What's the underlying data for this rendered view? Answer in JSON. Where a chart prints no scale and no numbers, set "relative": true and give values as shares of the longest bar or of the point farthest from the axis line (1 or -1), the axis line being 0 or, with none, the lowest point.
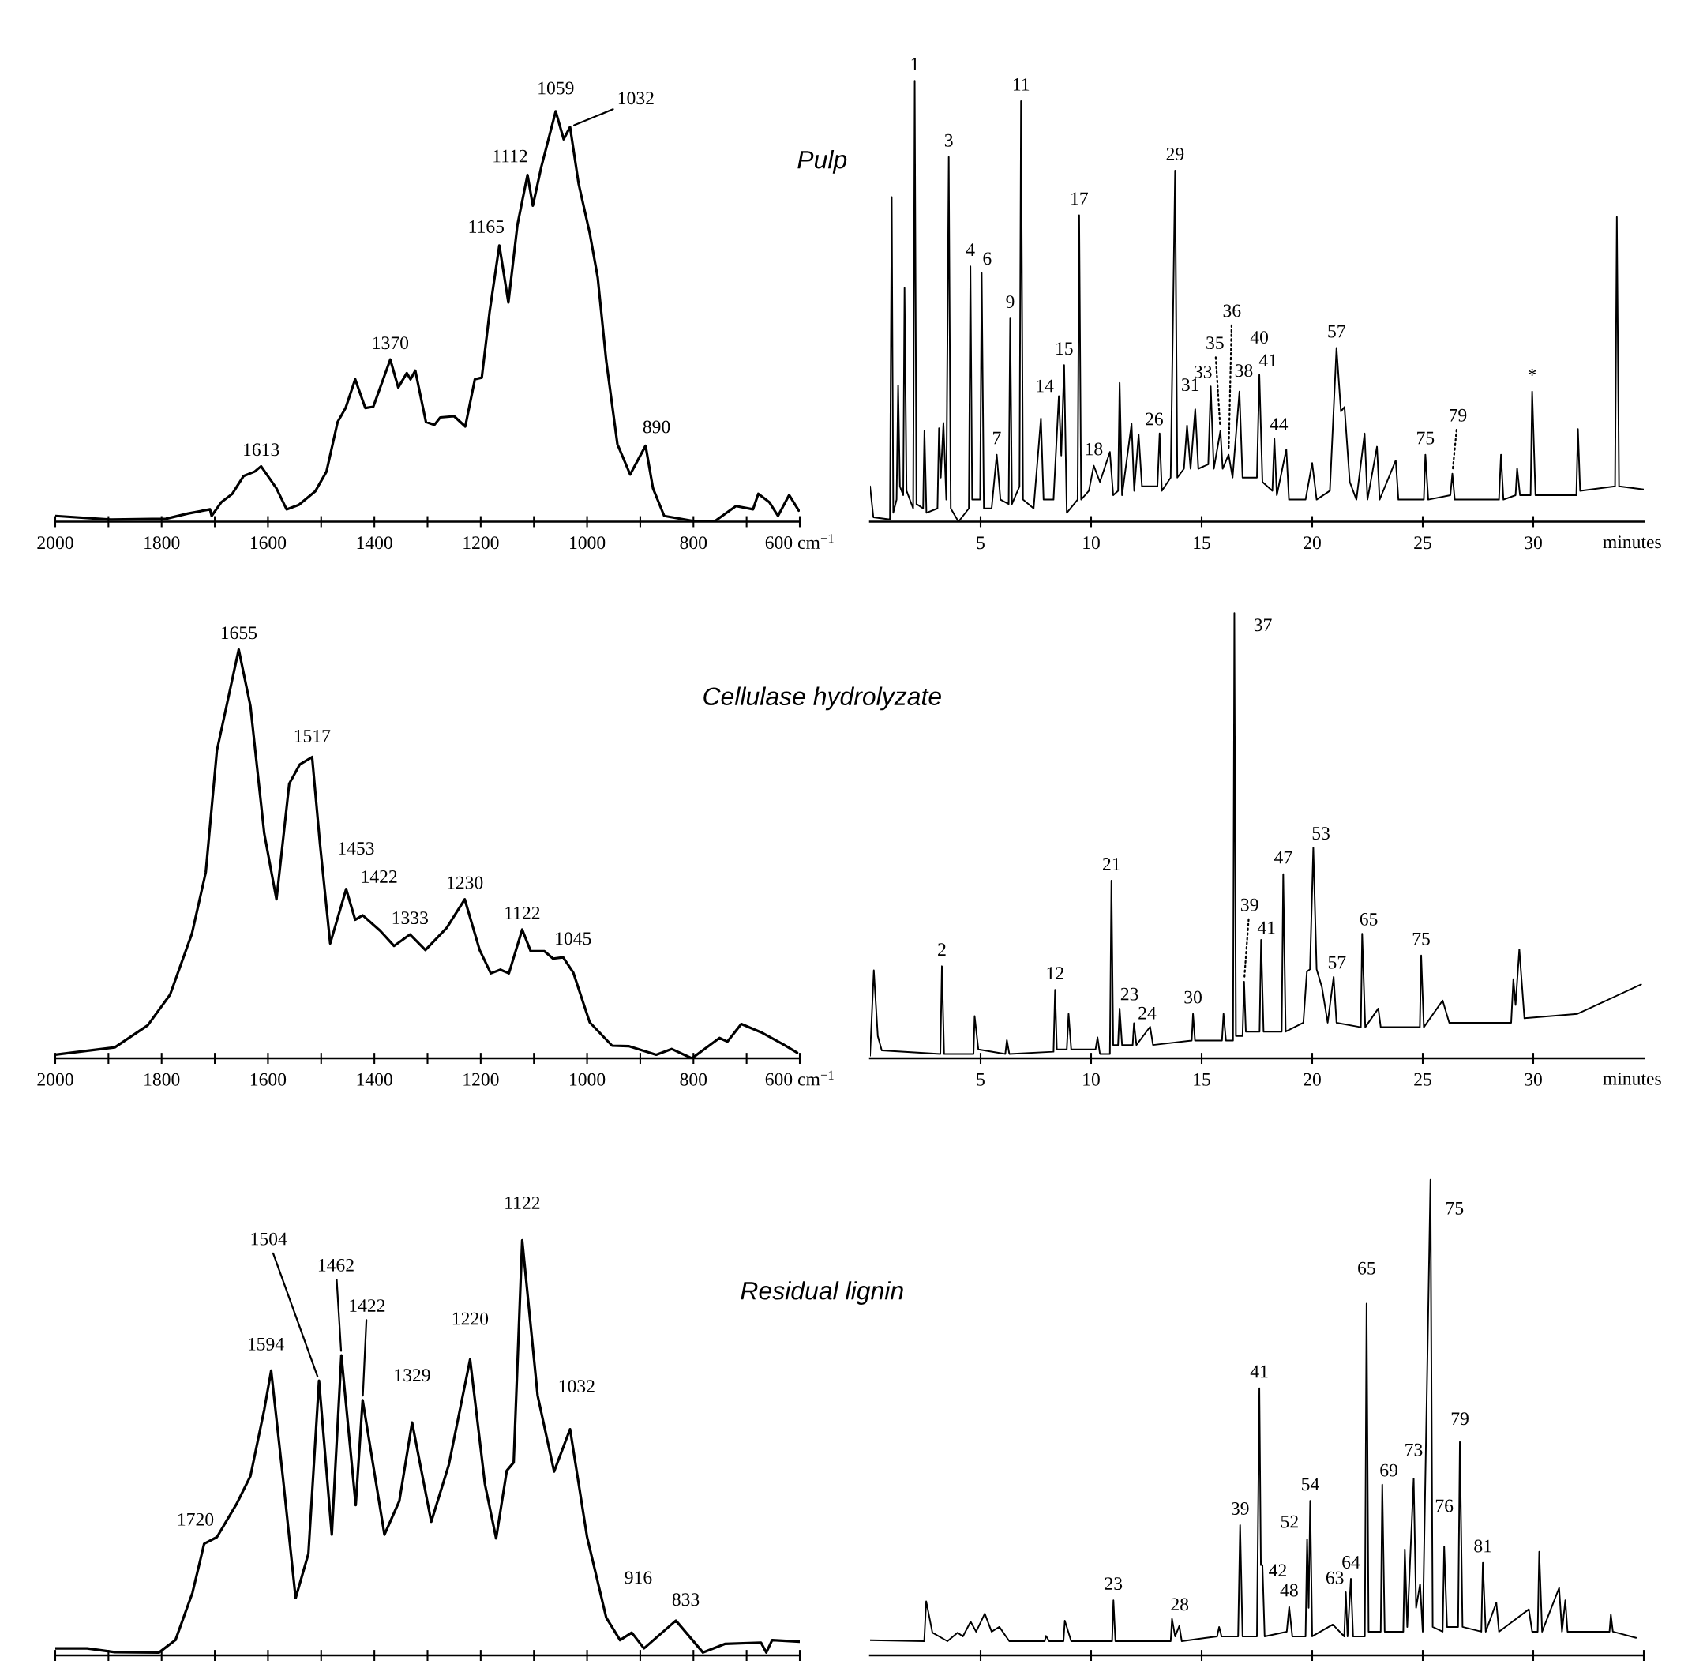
{
  "chart_data": [
    {
      "type": "line",
      "title": "Pulp",
      "relative": true,
      "xlim": [
        2000,
        600
      ],
      "xticks": [
        2000,
        {
          "value": 1900,
          "label": null
        },
        1800,
        {
          "value": 1700,
          "label": null
        },
        1600,
        {
          "value": 1500,
          "label": null
        },
        1400,
        {
          "value": 1300,
          "label": null
        },
        1200,
        {
          "value": 1100,
          "label": null
        },
        1000,
        {
          "value": 900,
          "label": null
        },
        800,
        {
          "value": 700,
          "label": null
        },
        {
          "value": 600,
          "label": "600 cm$^{−1}$"
        }
      ],
      "x": [
        2000,
        1896,
        1792,
        1750,
        1709,
        1706,
        1688,
        1667,
        1646,
        1625,
        1613,
        1584,
        1565,
        1542,
        1511,
        1490,
        1469,
        1454,
        1436,
        1417,
        1402,
        1370,
        1355,
        1339,
        1332,
        1323,
        1303,
        1287,
        1276,
        1250,
        1229,
        1211,
        1198,
        1183,
        1165,
        1148,
        1131,
        1112,
        1102,
        1086,
        1059,
        1044,
        1032,
        1016,
        995,
        980,
        964,
        943,
        919,
        890,
        876,
        855,
        793,
        761,
        720,
        688,
        678,
        657,
        641,
        620,
        602
      ],
      "values": [
        0.014,
        0.005,
        0.007,
        0.02,
        0.03,
        0.014,
        0.047,
        0.068,
        0.111,
        0.122,
        0.135,
        0.081,
        0.03,
        0.041,
        0.074,
        0.122,
        0.243,
        0.277,
        0.347,
        0.277,
        0.28,
        0.395,
        0.327,
        0.362,
        0.347,
        0.368,
        0.243,
        0.236,
        0.254,
        0.257,
        0.232,
        0.347,
        0.351,
        0.514,
        0.673,
        0.534,
        0.723,
        0.845,
        0.77,
        0.865,
        1.0,
        0.932,
        0.962,
        0.824,
        0.703,
        0.595,
        0.392,
        0.189,
        0.115,
        0.185,
        0.081,
        0.014,
        0.0,
        0.0,
        0.038,
        0.03,
        0.068,
        0.047,
        0.014,
        0.065,
        0.027
      ],
      "annotations": [
        {
          "text": "1613",
          "x": 1613,
          "y": 0.135
        },
        {
          "text": "1370",
          "x": 1370,
          "y": 0.395
        },
        {
          "text": "1165",
          "x": 1165,
          "y": 0.673
        },
        {
          "text": "1112",
          "x": 1112,
          "y": 0.845
        },
        {
          "text": "1059",
          "x": 1059,
          "y": 1.0
        },
        {
          "text": "1032",
          "x": 1032,
          "y": 0.962
        },
        {
          "text": "890",
          "x": 890,
          "y": 0.185
        }
      ]
    },
    {
      "type": "line",
      "xlabel": "minutes",
      "relative": true,
      "xlim": [
        0,
        35
      ],
      "xticks": [
        5,
        10,
        15,
        20,
        25,
        30
      ],
      "x": [
        0,
        0.15,
        0.9,
        0.98,
        1.05,
        1.2,
        1.27,
        1.35,
        1.5,
        1.56,
        1.65,
        1.95,
        2.02,
        2.1,
        2.4,
        2.46,
        2.55,
        3.05,
        3.12,
        3.2,
        3.32,
        3.45,
        3.56,
        3.65,
        4.0,
        4.47,
        4.54,
        4.62,
        4.98,
        5.05,
        5.15,
        5.5,
        5.73,
        5.9,
        6.27,
        6.34,
        6.42,
        6.76,
        6.83,
        6.92,
        7.4,
        7.73,
        7.85,
        8.3,
        8.54,
        8.65,
        8.78,
        8.9,
        9.39,
        9.46,
        9.55,
        9.9,
        10.12,
        10.4,
        10.85,
        11.0,
        11.22,
        11.29,
        11.4,
        11.83,
        11.95,
        12.15,
        12.3,
        13.0,
        13.1,
        13.2,
        13.6,
        13.8,
        13.9,
        14.2,
        14.34,
        14.5,
        14.71,
        14.85,
        15.3,
        15.41,
        15.55,
        15.85,
        15.95,
        16.22,
        16.4,
        16.71,
        16.85,
        17.5,
        17.61,
        17.75,
        18.2,
        18.29,
        18.4,
        18.83,
        18.95,
        19.7,
        20.0,
        20.2,
        20.8,
        21.1,
        21.3,
        21.46,
        21.7,
        22.0,
        22.37,
        22.5,
        22.93,
        23.05,
        23.78,
        23.9,
        25.05,
        25.12,
        25.25,
        26.25,
        26.34,
        26.45,
        28.45,
        28.54,
        28.65,
        29.2,
        29.27,
        29.4,
        29.88,
        29.95,
        30.1,
        31.95,
        32.02,
        32.12,
        33.7,
        33.78,
        33.88,
        35.0
      ],
      "values": [
        0.08,
        0.01,
        0.005,
        0.736,
        0.02,
        0.05,
        0.309,
        0.08,
        0.06,
        0.53,
        0.07,
        0.03,
        1.0,
        0.04,
        0.03,
        0.206,
        0.02,
        0.03,
        0.212,
        0.1,
        0.224,
        0.05,
        0.827,
        0.03,
        0.0,
        0.03,
        0.579,
        0.05,
        0.05,
        0.564,
        0.03,
        0.03,
        0.152,
        0.05,
        0.04,
        0.461,
        0.04,
        0.08,
        0.954,
        0.05,
        0.03,
        0.234,
        0.05,
        0.05,
        0.285,
        0.15,
        0.355,
        0.02,
        0.05,
        0.695,
        0.05,
        0.07,
        0.127,
        0.09,
        0.158,
        0.06,
        0.07,
        0.315,
        0.06,
        0.222,
        0.07,
        0.198,
        0.08,
        0.08,
        0.2,
        0.07,
        0.1,
        0.796,
        0.1,
        0.12,
        0.218,
        0.12,
        0.255,
        0.12,
        0.13,
        0.307,
        0.12,
        0.206,
        0.12,
        0.152,
        0.1,
        0.295,
        0.1,
        0.1,
        0.333,
        0.09,
        0.07,
        0.188,
        0.06,
        0.164,
        0.05,
        0.05,
        0.133,
        0.05,
        0.07,
        0.394,
        0.25,
        0.26,
        0.09,
        0.05,
        0.2,
        0.05,
        0.17,
        0.05,
        0.139,
        0.05,
        0.05,
        0.152,
        0.05,
        0.06,
        0.109,
        0.05,
        0.05,
        0.152,
        0.05,
        0.06,
        0.121,
        0.06,
        0.06,
        0.295,
        0.06,
        0.06,
        0.21,
        0.07,
        0.08,
        0.691,
        0.08,
        0.073
      ],
      "annotations": [
        {
          "text": "1",
          "x": 2.02,
          "y": 1.0
        },
        {
          "text": "3",
          "x": 3.56,
          "y": 0.827
        },
        {
          "text": "4",
          "x": 4.54,
          "y": 0.579
        },
        {
          "text": "6",
          "x": 5.05,
          "y": 0.564
        },
        {
          "text": "7",
          "x": 5.73,
          "y": 0.152
        },
        {
          "text": "9",
          "x": 6.34,
          "y": 0.461
        },
        {
          "text": "11",
          "x": 6.83,
          "y": 0.954
        },
        {
          "text": "14",
          "x": 8.54,
          "y": 0.285
        },
        {
          "text": "15",
          "x": 8.78,
          "y": 0.355
        },
        {
          "text": "17",
          "x": 9.46,
          "y": 0.695
        },
        {
          "text": "18",
          "x": 10.12,
          "y": 0.127
        },
        {
          "text": "26",
          "x": 13.1,
          "y": 0.2
        },
        {
          "text": "29",
          "x": 13.8,
          "y": 0.796
        },
        {
          "text": "31",
          "x": 14.34,
          "y": 0.218
        },
        {
          "text": "33",
          "x": 15.41,
          "y": 0.307
        },
        {
          "text": "35",
          "x": 15.85,
          "y": 0.206
        },
        {
          "text": "36",
          "x": 16.22,
          "y": 0.152
        },
        {
          "text": "38",
          "x": 16.71,
          "y": 0.295
        },
        {
          "text": "40",
          "x": 17.61,
          "y": 0.333
        },
        {
          "text": "41",
          "x": 17.61,
          "y": 0.333
        },
        {
          "text": "44",
          "x": 18.29,
          "y": 0.188
        },
        {
          "text": "57",
          "x": 21.1,
          "y": 0.394
        },
        {
          "text": "75",
          "x": 25.12,
          "y": 0.152
        },
        {
          "text": "79",
          "x": 26.34,
          "y": 0.109
        },
        {
          "text": "*",
          "x": 29.95,
          "y": 0.295
        }
      ]
    },
    {
      "type": "line",
      "title": "Cellulase hydrolyzate",
      "relative": true,
      "xlim": [
        2000,
        600
      ],
      "xticks": [
        2000,
        {
          "value": 1900,
          "label": null
        },
        1800,
        {
          "value": 1700,
          "label": null
        },
        1600,
        {
          "value": 1500,
          "label": null
        },
        1400,
        {
          "value": 1300,
          "label": null
        },
        1200,
        {
          "value": 1100,
          "label": null
        },
        1000,
        {
          "value": 900,
          "label": null
        },
        800,
        {
          "value": 700,
          "label": null
        },
        {
          "value": 600,
          "label": "600 cm$^{−1}$"
        }
      ],
      "x": [
        2000,
        1888,
        1826,
        1784,
        1743,
        1717,
        1696,
        1655,
        1633,
        1607,
        1584,
        1560,
        1540,
        1517,
        1502,
        1483,
        1453,
        1436,
        1422,
        1389,
        1363,
        1333,
        1304,
        1264,
        1230,
        1202,
        1181,
        1163,
        1147,
        1122,
        1106,
        1080,
        1064,
        1045,
        1026,
        995,
        953,
        922,
        870,
        841,
        803,
        751,
        736,
        710,
        673,
        631,
        605
      ],
      "values": [
        0.009,
        0.027,
        0.081,
        0.156,
        0.305,
        0.455,
        0.753,
        1.0,
        0.862,
        0.55,
        0.389,
        0.672,
        0.719,
        0.737,
        0.522,
        0.281,
        0.414,
        0.339,
        0.35,
        0.312,
        0.275,
        0.303,
        0.265,
        0.319,
        0.389,
        0.265,
        0.208,
        0.217,
        0.208,
        0.315,
        0.262,
        0.262,
        0.244,
        0.247,
        0.21,
        0.088,
        0.031,
        0.03,
        0.009,
        0.023,
        0.0,
        0.05,
        0.041,
        0.084,
        0.064,
        0.034,
        0.014
      ],
      "annotations": [
        {
          "text": "1655",
          "x": 1655,
          "y": 1.0
        },
        {
          "text": "1517",
          "x": 1517,
          "y": 0.737
        },
        {
          "text": "1453",
          "x": 1453,
          "y": 0.414
        },
        {
          "text": "1422",
          "x": 1422,
          "y": 0.35
        },
        {
          "text": "1333",
          "x": 1333,
          "y": 0.303
        },
        {
          "text": "1230",
          "x": 1230,
          "y": 0.389
        },
        {
          "text": "1122",
          "x": 1122,
          "y": 0.315
        },
        {
          "text": "1045",
          "x": 1045,
          "y": 0.247
        }
      ]
    },
    {
      "type": "line",
      "xlabel": "minutes",
      "relative": true,
      "xlim": [
        0,
        35
      ],
      "xticks": [
        5,
        10,
        15,
        20,
        25,
        30
      ],
      "x": [
        0,
        0.17,
        0.35,
        0.53,
        3.18,
        3.25,
        3.35,
        4.68,
        4.73,
        4.9,
        6.12,
        6.19,
        6.3,
        8.3,
        8.37,
        8.45,
        8.9,
        8.98,
        9.1,
        10.2,
        10.29,
        10.4,
        10.85,
        10.92,
        11.0,
        11.22,
        11.29,
        11.4,
        11.88,
        11.94,
        12.05,
        12.67,
        12.8,
        14.55,
        14.61,
        14.7,
        15.92,
        15.99,
        16.1,
        16.42,
        16.48,
        16.55,
        16.85,
        16.92,
        17.0,
        17.62,
        17.69,
        17.8,
        18.62,
        18.69,
        18.8,
        19.6,
        19.76,
        19.9,
        20.05,
        20.2,
        20.44,
        20.7,
        20.97,
        21.1,
        22.2,
        22.26,
        22.4,
        22.99,
        23.1,
        24.87,
        24.93,
        25.05,
        25.9,
        26.2,
        29.0,
        29.1,
        29.2,
        29.37,
        29.6,
        32.0,
        34.88
      ],
      "values": [
        0.006,
        0.198,
        0.05,
        0.018,
        0.01,
        0.207,
        0.01,
        0.01,
        0.095,
        0.02,
        0.01,
        0.041,
        0.01,
        0.015,
        0.154,
        0.02,
        0.02,
        0.1,
        0.02,
        0.02,
        0.047,
        0.01,
        0.01,
        0.399,
        0.03,
        0.03,
        0.112,
        0.03,
        0.03,
        0.079,
        0.03,
        0.071,
        0.03,
        0.04,
        0.1,
        0.04,
        0.04,
        0.1,
        0.04,
        0.04,
        1.0,
        0.05,
        0.05,
        0.172,
        0.06,
        0.06,
        0.266,
        0.06,
        0.06,
        0.414,
        0.06,
        0.08,
        0.195,
        0.2,
        0.473,
        0.2,
        0.16,
        0.08,
        0.183,
        0.08,
        0.07,
        0.28,
        0.07,
        0.112,
        0.07,
        0.07,
        0.231,
        0.07,
        0.13,
        0.08,
        0.08,
        0.178,
        0.12,
        0.245,
        0.09,
        0.1,
        0.166
      ],
      "annotations": [
        {
          "text": "2",
          "x": 3.25,
          "y": 0.207
        },
        {
          "text": "12",
          "x": 8.37,
          "y": 0.154
        },
        {
          "text": "21",
          "x": 10.92,
          "y": 0.399
        },
        {
          "text": "23",
          "x": 11.29,
          "y": 0.112
        },
        {
          "text": "24",
          "x": 11.94,
          "y": 0.079
        },
        {
          "text": "30",
          "x": 14.61,
          "y": 0.1
        },
        {
          "text": "37",
          "x": 16.48,
          "y": 1.0
        },
        {
          "text": "39",
          "x": 16.92,
          "y": 0.172
        },
        {
          "text": "41",
          "x": 17.69,
          "y": 0.266
        },
        {
          "text": "47",
          "x": 18.69,
          "y": 0.414
        },
        {
          "text": "53",
          "x": 20.05,
          "y": 0.473
        },
        {
          "text": "57",
          "x": 20.97,
          "y": 0.183
        },
        {
          "text": "65",
          "x": 22.26,
          "y": 0.28
        },
        {
          "text": "75",
          "x": 24.93,
          "y": 0.231
        }
      ]
    },
    {
      "type": "line",
      "title": "Residual lignin",
      "relative": true,
      "tick_labels": false,
      "xlim": [
        2000,
        600
      ],
      "xticks": [
        2000,
        1900,
        1800,
        1700,
        1600,
        1500,
        1400,
        1300,
        1200,
        1100,
        1000,
        900,
        800,
        700,
        600
      ],
      "x": [
        2000,
        1940,
        1888,
        1805,
        1774,
        1742,
        1720,
        1696,
        1659,
        1633,
        1607,
        1594,
        1571,
        1548,
        1524,
        1504,
        1480,
        1462,
        1435,
        1422,
        1381,
        1353,
        1329,
        1293,
        1260,
        1220,
        1192,
        1171,
        1151,
        1138,
        1122,
        1093,
        1062,
        1032,
        1000,
        964,
        938,
        916,
        893,
        833,
        782,
        740,
        673,
        663,
        652,
        600
      ],
      "values": [
        0.017,
        0.017,
        0.008,
        0.007,
        0.037,
        0.151,
        0.269,
        0.285,
        0.365,
        0.432,
        0.592,
        0.686,
        0.418,
        0.138,
        0.245,
        0.662,
        0.291,
        0.723,
        0.362,
        0.615,
        0.291,
        0.372,
        0.561,
        0.322,
        0.459,
        0.713,
        0.412,
        0.282,
        0.445,
        0.465,
        1.0,
        0.626,
        0.443,
        0.545,
        0.285,
        0.091,
        0.037,
        0.055,
        0.017,
        0.084,
        0.007,
        0.028,
        0.031,
        0.007,
        0.037,
        0.033
      ],
      "annotations": [
        {
          "text": "1720",
          "x": 1720,
          "y": 0.269
        },
        {
          "text": "1594",
          "x": 1594,
          "y": 0.686
        },
        {
          "text": "1504",
          "x": 1504,
          "y": 0.662
        },
        {
          "text": "1462",
          "x": 1462,
          "y": 0.723
        },
        {
          "text": "1422",
          "x": 1422,
          "y": 0.615
        },
        {
          "text": "1329",
          "x": 1329,
          "y": 0.561
        },
        {
          "text": "1220",
          "x": 1220,
          "y": 0.713
        },
        {
          "text": "1122",
          "x": 1122,
          "y": 1.0
        },
        {
          "text": "1032",
          "x": 1032,
          "y": 0.545
        },
        {
          "text": "916",
          "x": 916,
          "y": 0.055
        },
        {
          "text": "833",
          "x": 833,
          "y": 0.084
        }
      ]
    },
    {
      "type": "line",
      "relative": true,
      "tick_labels": false,
      "xlim": [
        0,
        35
      ],
      "xticks": [
        5,
        10,
        15,
        20,
        25,
        30,
        35
      ],
      "x": [
        0,
        2.45,
        2.54,
        2.82,
        3.5,
        3.96,
        4.2,
        4.55,
        4.8,
        5.19,
        5.5,
        5.85,
        6.3,
        7.9,
        7.96,
        8.1,
        8.75,
        8.81,
        9.1,
        10.95,
        11.01,
        11.1,
        13.6,
        13.66,
        13.8,
        13.99,
        14.1,
        15.7,
        15.79,
        15.9,
        16.65,
        16.74,
        16.85,
        17.5,
        17.61,
        17.68,
        17.75,
        17.85,
        18.85,
        18.96,
        19.1,
        19.7,
        19.77,
        19.84,
        19.91,
        20.0,
        20.93,
        21.45,
        21.52,
        21.6,
        21.75,
        21.85,
        22.38,
        22.46,
        22.55,
        23.1,
        23.17,
        23.28,
        24.12,
        24.19,
        24.3,
        24.59,
        24.7,
        24.88,
        25.0,
        25.35,
        25.45,
        25.9,
        25.97,
        26.1,
        26.6,
        26.68,
        26.8,
        27.65,
        27.72,
        27.85,
        28.33,
        28.45,
        29.8,
        29.95,
        30.2,
        30.27,
        30.4,
        31.17,
        31.3,
        31.45,
        31.55,
        33.45,
        33.51,
        33.6,
        34.65
      ],
      "values": [
        0.032,
        0.03,
        0.114,
        0.048,
        0.03,
        0.048,
        0.04,
        0.071,
        0.05,
        0.088,
        0.05,
        0.06,
        0.03,
        0.03,
        0.041,
        0.03,
        0.03,
        0.073,
        0.03,
        0.03,
        0.116,
        0.03,
        0.03,
        0.077,
        0.04,
        0.062,
        0.03,
        0.04,
        0.06,
        0.04,
        0.04,
        0.274,
        0.04,
        0.04,
        0.562,
        0.19,
        0.19,
        0.04,
        0.05,
        0.102,
        0.04,
        0.04,
        0.244,
        0.1,
        0.325,
        0.04,
        0.065,
        0.04,
        0.133,
        0.04,
        0.161,
        0.04,
        0.04,
        0.74,
        0.05,
        0.05,
        0.359,
        0.05,
        0.05,
        0.223,
        0.06,
        0.372,
        0.1,
        0.15,
        0.05,
        1.0,
        0.06,
        0.05,
        0.229,
        0.06,
        0.06,
        0.449,
        0.06,
        0.05,
        0.195,
        0.05,
        0.111,
        0.05,
        0.097,
        0.05,
        0.05,
        0.218,
        0.05,
        0.142,
        0.05,
        0.116,
        0.05,
        0.05,
        0.086,
        0.05,
        0.037
      ],
      "annotations": [
        {
          "text": "23",
          "x": 11.01,
          "y": 0.116
        },
        {
          "text": "28",
          "x": 13.66,
          "y": 0.077
        },
        {
          "text": "39",
          "x": 16.74,
          "y": 0.274
        },
        {
          "text": "41",
          "x": 17.61,
          "y": 0.562
        },
        {
          "text": "42",
          "x": 17.75,
          "y": 0.19
        },
        {
          "text": "48",
          "x": 18.96,
          "y": 0.102
        },
        {
          "text": "52",
          "x": 19.77,
          "y": 0.244
        },
        {
          "text": "54",
          "x": 19.91,
          "y": 0.325
        },
        {
          "text": "63",
          "x": 21.52,
          "y": 0.133
        },
        {
          "text": "64",
          "x": 21.75,
          "y": 0.161
        },
        {
          "text": "65",
          "x": 22.46,
          "y": 0.74
        },
        {
          "text": "69",
          "x": 23.17,
          "y": 0.359
        },
        {
          "text": "73",
          "x": 24.59,
          "y": 0.372
        },
        {
          "text": "75",
          "x": 25.35,
          "y": 1.0
        },
        {
          "text": "76",
          "x": 25.97,
          "y": 0.229
        },
        {
          "text": "79",
          "x": 26.68,
          "y": 0.449
        },
        {
          "text": "81",
          "x": 27.72,
          "y": 0.195
        }
      ]
    }
  ]
}
